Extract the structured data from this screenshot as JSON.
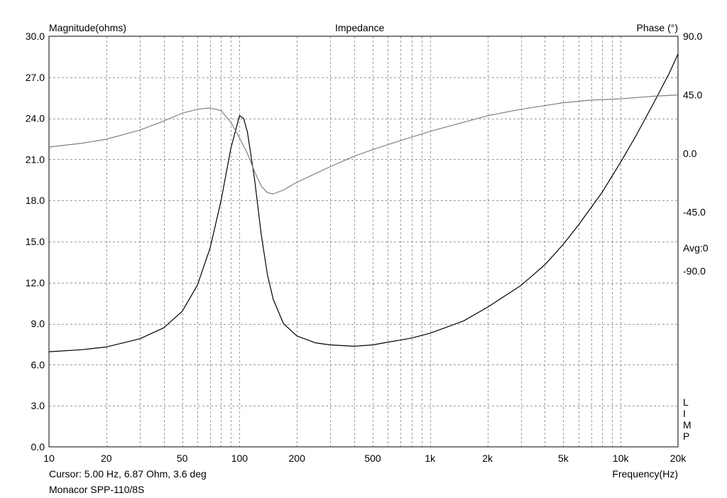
{
  "chart_data": {
    "type": "line",
    "title": "Impedance",
    "left_axis_title": "Magnitude(ohms)",
    "right_axis_title": "Phase (°)",
    "x_axis_title": "Frequency(Hz)",
    "x_scale": "log",
    "xlim": [
      10,
      20000
    ],
    "ylim": [
      0,
      30
    ],
    "y2lim": [
      -225,
      90
    ],
    "grid": true,
    "x_ticks": [
      {
        "value": 10,
        "label": "10"
      },
      {
        "value": 20,
        "label": "20"
      },
      {
        "value": 50,
        "label": "50"
      },
      {
        "value": 100,
        "label": "100"
      },
      {
        "value": 200,
        "label": "200"
      },
      {
        "value": 500,
        "label": "500"
      },
      {
        "value": 1000,
        "label": "1k"
      },
      {
        "value": 2000,
        "label": "2k"
      },
      {
        "value": 5000,
        "label": "5k"
      },
      {
        "value": 10000,
        "label": "10k"
      },
      {
        "value": 20000,
        "label": "20k"
      }
    ],
    "y_ticks": [
      "0.0",
      "3.0",
      "6.0",
      "9.0",
      "12.0",
      "15.0",
      "18.0",
      "21.0",
      "24.0",
      "27.0",
      "30.0"
    ],
    "y2_ticks": [
      {
        "value": 90,
        "label": "90.0"
      },
      {
        "value": 45,
        "label": "45.0"
      },
      {
        "value": 0,
        "label": "0.0"
      },
      {
        "value": -45,
        "label": "-45.0"
      },
      {
        "value": -90,
        "label": "-90.0"
      }
    ],
    "avg_label": "Avg:0",
    "limp_label": [
      "L",
      "I",
      "M",
      "P"
    ],
    "series": [
      {
        "axis": "left",
        "color": "#000000",
        "points": [
          [
            10,
            6.95
          ],
          [
            15,
            7.1
          ],
          [
            20,
            7.3
          ],
          [
            30,
            7.9
          ],
          [
            40,
            8.7
          ],
          [
            50,
            9.9
          ],
          [
            60,
            11.8
          ],
          [
            70,
            14.5
          ],
          [
            80,
            18.0
          ],
          [
            90,
            21.8
          ],
          [
            100,
            24.2
          ],
          [
            105,
            24.0
          ],
          [
            110,
            23.0
          ],
          [
            120,
            19.5
          ],
          [
            130,
            15.5
          ],
          [
            140,
            12.6
          ],
          [
            150,
            10.8
          ],
          [
            170,
            9.0
          ],
          [
            200,
            8.1
          ],
          [
            250,
            7.6
          ],
          [
            300,
            7.45
          ],
          [
            400,
            7.35
          ],
          [
            500,
            7.45
          ],
          [
            600,
            7.65
          ],
          [
            700,
            7.8
          ],
          [
            800,
            7.95
          ],
          [
            1000,
            8.3
          ],
          [
            1500,
            9.2
          ],
          [
            2000,
            10.2
          ],
          [
            3000,
            11.8
          ],
          [
            4000,
            13.3
          ],
          [
            5000,
            14.8
          ],
          [
            6000,
            16.2
          ],
          [
            8000,
            18.6
          ],
          [
            10000,
            20.8
          ],
          [
            12000,
            22.7
          ],
          [
            15000,
            25.2
          ],
          [
            18000,
            27.3
          ],
          [
            20000,
            28.7
          ]
        ]
      },
      {
        "axis": "right",
        "color": "#808080",
        "points": [
          [
            10,
            5
          ],
          [
            15,
            8
          ],
          [
            20,
            11
          ],
          [
            30,
            18
          ],
          [
            40,
            25
          ],
          [
            50,
            31
          ],
          [
            60,
            34
          ],
          [
            70,
            35
          ],
          [
            80,
            33
          ],
          [
            90,
            24
          ],
          [
            100,
            12
          ],
          [
            110,
            0
          ],
          [
            120,
            -14
          ],
          [
            130,
            -25
          ],
          [
            140,
            -30
          ],
          [
            150,
            -31
          ],
          [
            170,
            -28
          ],
          [
            200,
            -22
          ],
          [
            300,
            -10
          ],
          [
            400,
            -2
          ],
          [
            500,
            3
          ],
          [
            700,
            10
          ],
          [
            1000,
            17
          ],
          [
            2000,
            29
          ],
          [
            3000,
            34
          ],
          [
            5000,
            39
          ],
          [
            7000,
            41
          ],
          [
            10000,
            42
          ],
          [
            15000,
            44
          ],
          [
            20000,
            45
          ]
        ]
      }
    ]
  },
  "cursor_text": "Cursor: 5.00 Hz, 6.87 Ohm, 3.6 deg",
  "device_name": "Monacor SPP-110/8S"
}
